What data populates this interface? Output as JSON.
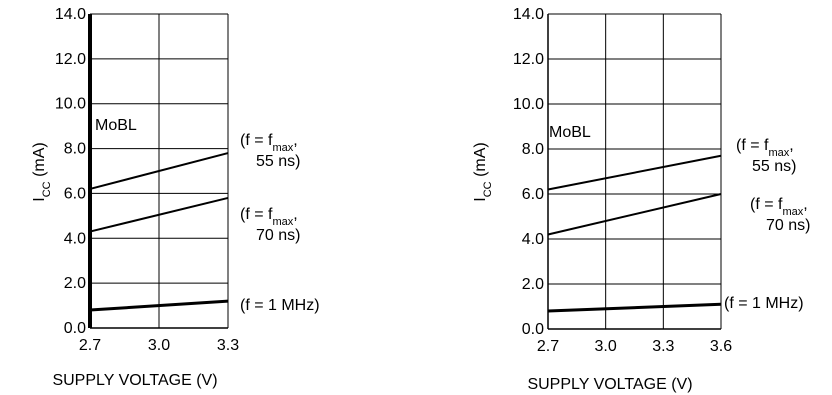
{
  "chart_data": [
    {
      "type": "line",
      "xlabel": "SUPPLY VOLTAGE (V)",
      "ylabel_main": "I",
      "ylabel_sub": "CC",
      "ylabel_unit": " (mA)",
      "xlim": [
        2.7,
        3.3
      ],
      "ylim": [
        0,
        14
      ],
      "x_ticks": [
        "2.7",
        "3.0",
        "3.3"
      ],
      "y_ticks": [
        "0.0",
        "2.0",
        "4.0",
        "6.0",
        "8.0",
        "10.0",
        "12.0",
        "14.0"
      ],
      "grid": true,
      "inset_label": "MoBL",
      "series": [
        {
          "x": [
            2.7,
            3.3
          ],
          "y": [
            6.2,
            7.8
          ],
          "label_lines": [
            {
              "t": "(f = f",
              "sub": "max",
              "tail": ","
            },
            {
              "t": "55 ns)"
            }
          ]
        },
        {
          "x": [
            2.7,
            3.3
          ],
          "y": [
            4.3,
            5.8
          ],
          "label_lines": [
            {
              "t": "(f = f",
              "sub": "max",
              "tail": ","
            },
            {
              "t": "70 ns)"
            }
          ]
        },
        {
          "x": [
            2.7,
            3.3
          ],
          "y": [
            0.8,
            1.2
          ],
          "label_lines": [
            {
              "t": "(f = 1 MHz)"
            }
          ]
        }
      ]
    },
    {
      "type": "line",
      "xlabel": "SUPPLY VOLTAGE (V)",
      "ylabel_main": "I",
      "ylabel_sub": "CC",
      "ylabel_unit": " (mA)",
      "xlim": [
        2.7,
        3.6
      ],
      "ylim": [
        0,
        14
      ],
      "x_ticks": [
        "2.7",
        "3.0",
        "3.3",
        "3.6"
      ],
      "y_ticks": [
        "0.0",
        "2.0",
        "4.0",
        "6.0",
        "8.0",
        "10.0",
        "12.0",
        "14.0"
      ],
      "grid": true,
      "inset_label": "MoBL",
      "series": [
        {
          "x": [
            2.7,
            3.6
          ],
          "y": [
            6.2,
            7.7
          ],
          "label_lines": [
            {
              "t": "(f = f",
              "sub": "max",
              "tail": ","
            },
            {
              "t": "55 ns)"
            }
          ]
        },
        {
          "x": [
            2.7,
            3.6
          ],
          "y": [
            4.2,
            6.0
          ],
          "label_lines": [
            {
              "t": "(f = f",
              "sub": "max",
              "tail": ","
            },
            {
              "t": "70 ns)"
            }
          ]
        },
        {
          "x": [
            2.7,
            3.6
          ],
          "y": [
            0.8,
            1.1
          ],
          "label_lines": [
            {
              "t": "(f = 1 MHz)"
            }
          ]
        }
      ]
    }
  ]
}
